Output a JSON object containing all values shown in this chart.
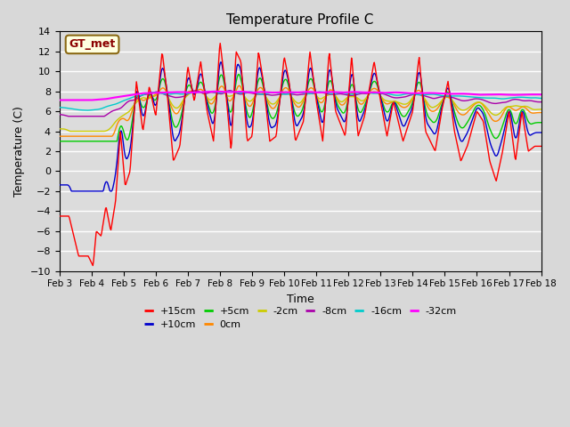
{
  "title": "Temperature Profile C",
  "xlabel": "Time",
  "ylabel": "Temperature (C)",
  "ylim": [
    -10,
    14
  ],
  "yticks": [
    -10,
    -8,
    -6,
    -4,
    -2,
    0,
    2,
    4,
    6,
    8,
    10,
    12,
    14
  ],
  "x_tick_labels": [
    "Feb 3",
    "Feb 4",
    "Feb 5",
    "Feb 6",
    "Feb 7",
    "Feb 8",
    "Feb 9",
    "Feb 10",
    "Feb 11",
    "Feb 12",
    "Feb 13",
    "Feb 14",
    "Feb 15",
    "Feb 16",
    "Feb 17",
    "Feb 18"
  ],
  "legend_label": "GT_met",
  "series_labels": [
    "+15cm",
    "+10cm",
    "+5cm",
    "0cm",
    "-2cm",
    "-8cm",
    "-16cm",
    "-32cm"
  ],
  "series_colors": [
    "#ff0000",
    "#0000cc",
    "#00cc00",
    "#ff8800",
    "#cccc00",
    "#aa00aa",
    "#00cccc",
    "#ff00ff"
  ],
  "background_color": "#dcdcdc",
  "plot_bg_color": "#dcdcdc",
  "grid_color": "#ffffff",
  "title_fontsize": 11,
  "axis_fontsize": 9,
  "legend_fontsize": 8
}
